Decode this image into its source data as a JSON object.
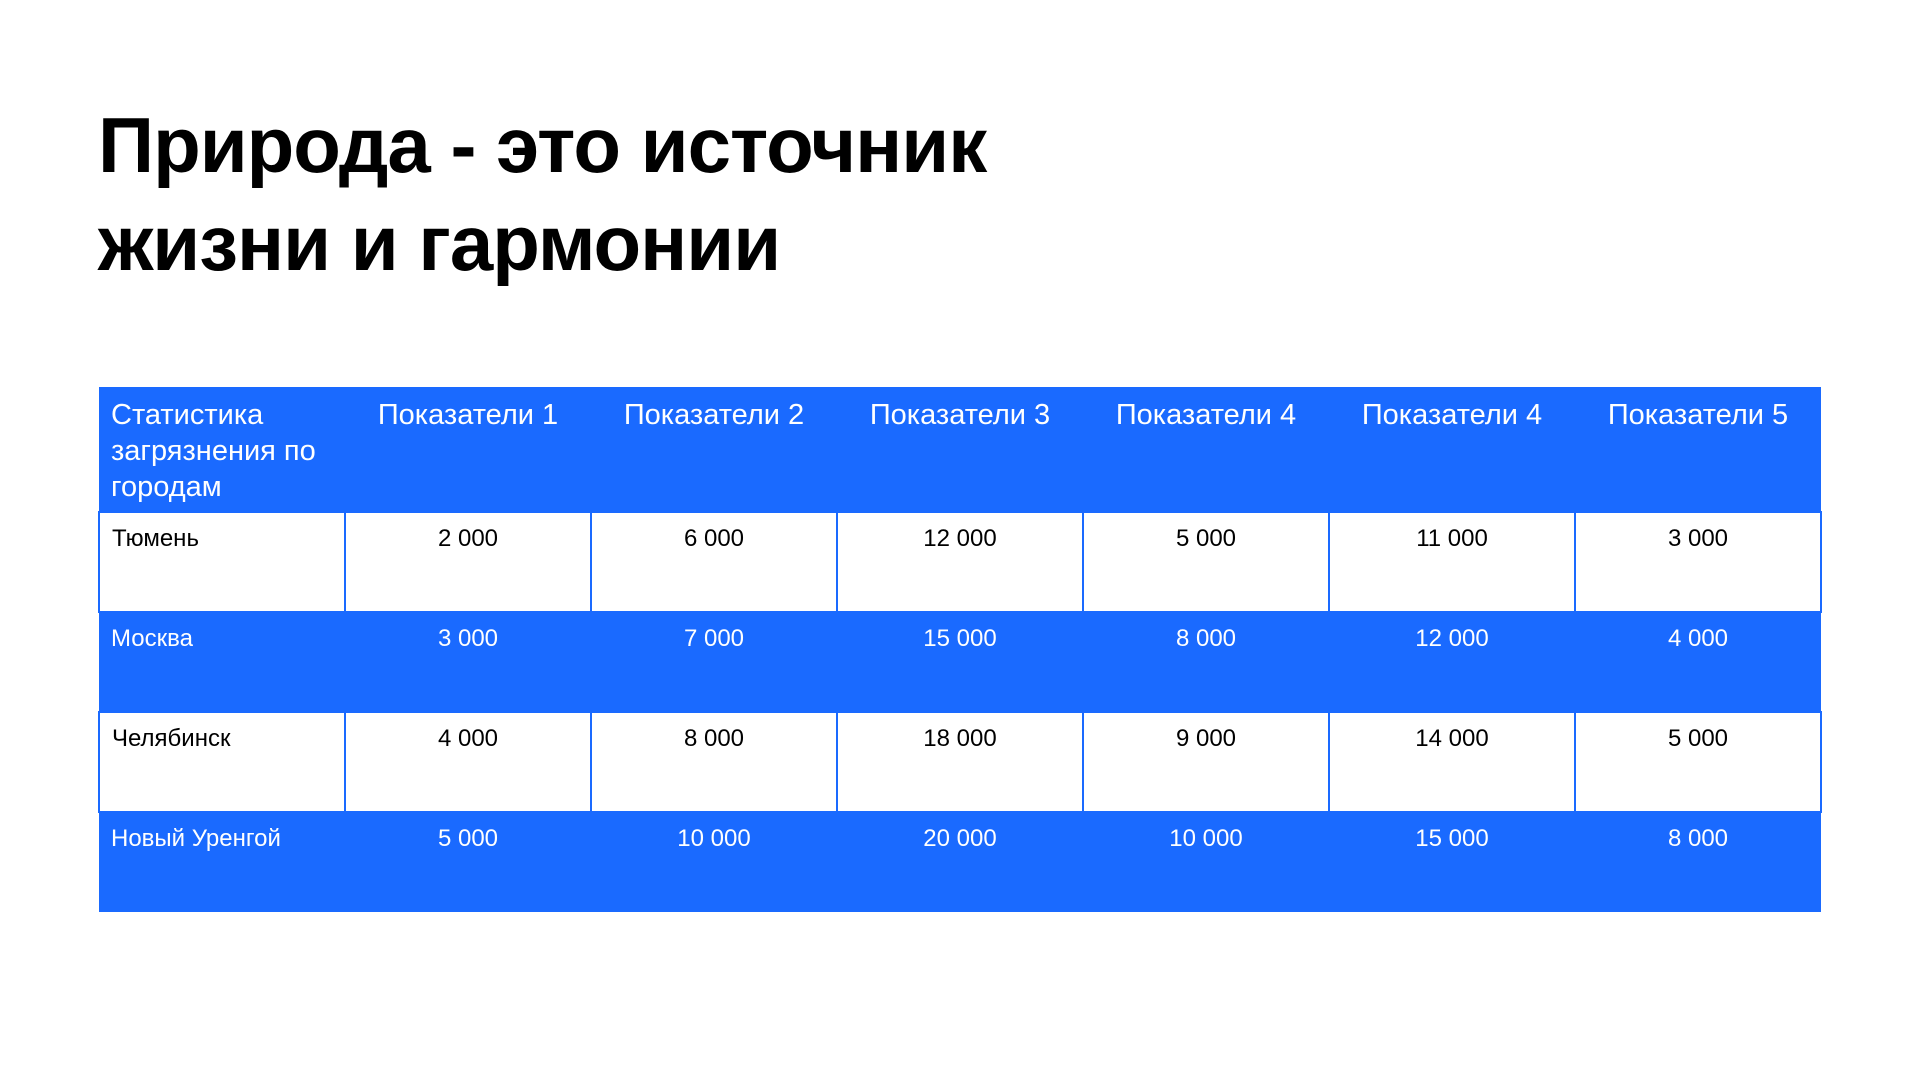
{
  "title": {
    "line1": "Природа - это источник",
    "line2": "жизни и гармонии"
  },
  "accent_color": "#1a6aff",
  "table": {
    "headers": [
      "Статистика загрязнения по городам",
      "Показатели 1",
      "Показатели 2",
      "Показатели 3",
      "Показатели 4",
      "Показатели 4",
      "Показатели 5"
    ],
    "rows": [
      [
        "Тюмень",
        "2 000",
        "6 000",
        "12 000",
        "5 000",
        "11 000",
        "3 000"
      ],
      [
        "Москва",
        "3 000",
        "7 000",
        "15 000",
        "8 000",
        "12 000",
        "4 000"
      ],
      [
        "Челябинск",
        "4 000",
        "8 000",
        "18 000",
        "9 000",
        "14 000",
        "5 000"
      ],
      [
        "Новый Уренгой",
        "5 000",
        "10 000",
        "20 000",
        "10 000",
        "15 000",
        "8 000"
      ]
    ]
  }
}
